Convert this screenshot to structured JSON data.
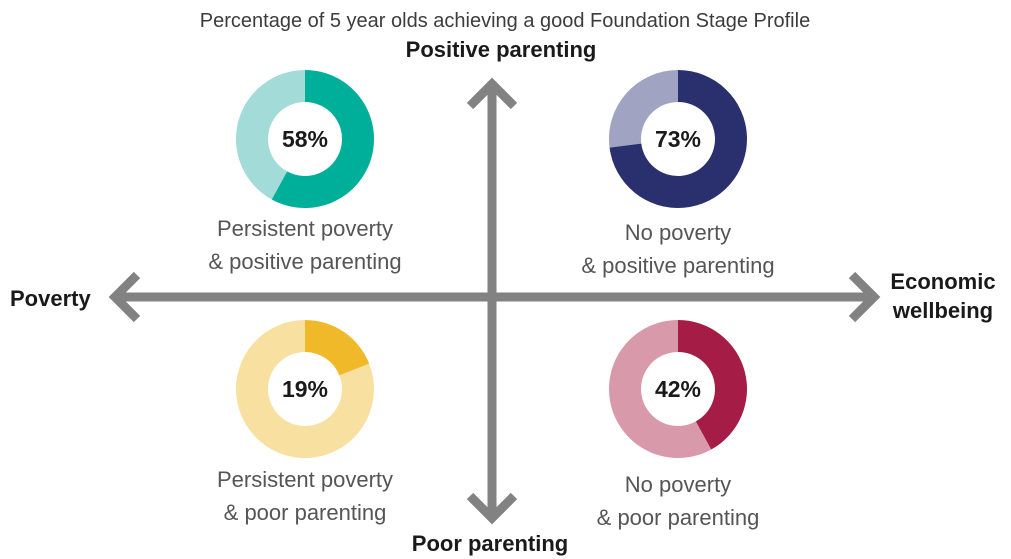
{
  "chart_data": {
    "type": "pie",
    "title": "Percentage of 5 year olds achieving a good Foundation Stage Profile",
    "axes": {
      "top": "Positive parenting",
      "bottom": "Poor parenting",
      "left": "Poverty",
      "right_line1": "Economic",
      "right_line2": "wellbeing"
    },
    "quadrants": [
      {
        "id": "persistent-poverty-positive-parenting",
        "value": 58,
        "label": "58%",
        "caption_line1": "Persistent poverty",
        "caption_line2": "& positive parenting",
        "color": "#00af9a",
        "remainder_color": "#a2dbd7"
      },
      {
        "id": "no-poverty-positive-parenting",
        "value": 73,
        "label": "73%",
        "caption_line1": "No poverty",
        "caption_line2": "& positive parenting",
        "color": "#2a306e",
        "remainder_color": "#a0a3c2"
      },
      {
        "id": "persistent-poverty-poor-parenting",
        "value": 19,
        "label": "19%",
        "caption_line1": "Persistent poverty",
        "caption_line2": "& poor parenting",
        "color": "#efb92a",
        "remainder_color": "#f8e0a1"
      },
      {
        "id": "no-poverty-poor-parenting",
        "value": 42,
        "label": "42%",
        "caption_line1": "No poverty",
        "caption_line2": "& poor parenting",
        "color": "#a51c46",
        "remainder_color": "#d899ab"
      }
    ],
    "axis_color": "#828282"
  }
}
